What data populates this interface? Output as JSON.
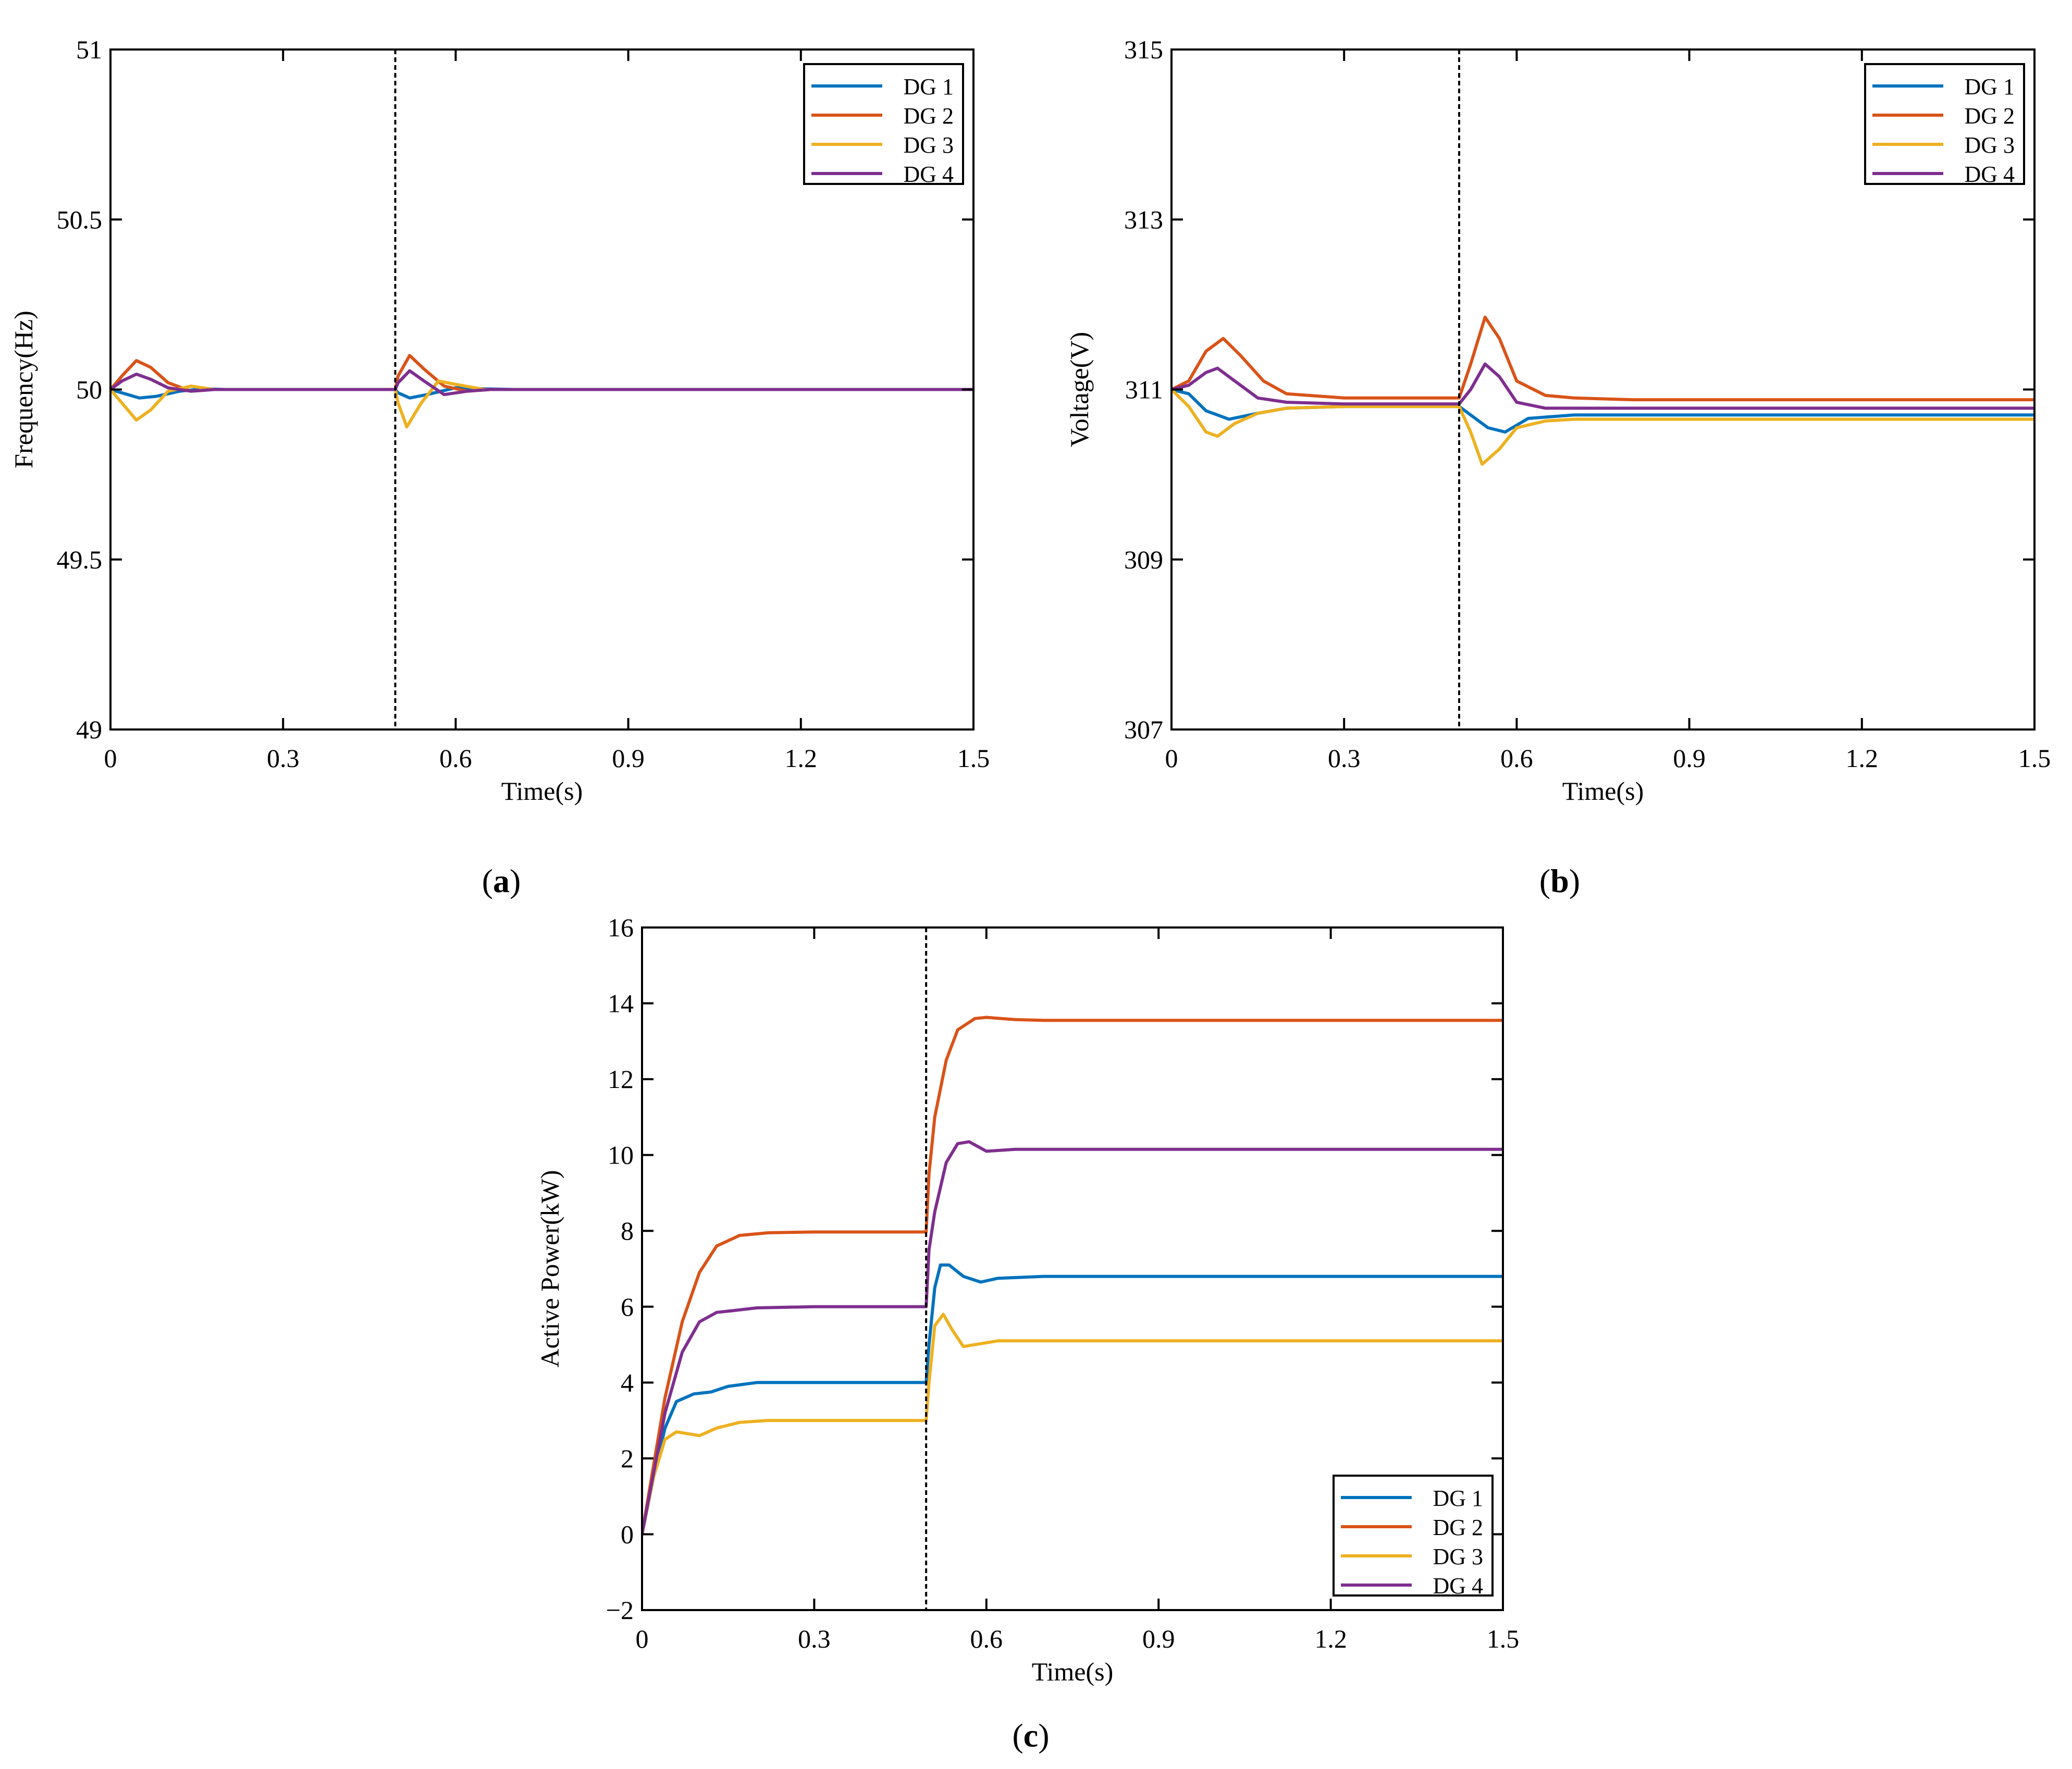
{
  "figure_labels": {
    "a": "a",
    "b": "b",
    "c": "c",
    "open": "(",
    "close": ")"
  },
  "colors": {
    "DG 1": "#0072BD",
    "DG 2": "#D95319",
    "DG 3": "#EDB120",
    "DG 4": "#7E2F8E",
    "axis": "#000000",
    "event_line": "#000000"
  },
  "chart_data": [
    {
      "id": "a",
      "type": "line",
      "title": "",
      "xlabel": "Time(s)",
      "ylabel": "Frequency(Hz)",
      "xlim": [
        0,
        1.5
      ],
      "ylim": [
        49,
        51
      ],
      "xticks": [
        0,
        0.3,
        0.6,
        0.9,
        1.2,
        1.5
      ],
      "xtick_labels": [
        "0",
        "0.3",
        "0.6",
        "0.9",
        "1.2",
        "1.5"
      ],
      "yticks": [
        49,
        49.5,
        50,
        50.5,
        51
      ],
      "ytick_labels": [
        "49",
        "49.5",
        "50",
        "50.5",
        "51"
      ],
      "event_line_x": 0.495,
      "legend_position": "top-right",
      "legend": [
        "DG 1",
        "DG 2",
        "DG 3",
        "DG 4"
      ],
      "series": [
        {
          "name": "DG 1",
          "x": [
            0,
            0.02,
            0.05,
            0.08,
            0.12,
            0.16,
            0.2,
            0.495,
            0.5,
            0.52,
            0.55,
            0.6,
            0.65,
            0.7,
            1.5
          ],
          "y": [
            50,
            49.99,
            49.975,
            49.98,
            49.995,
            50.002,
            50,
            50,
            49.99,
            49.975,
            49.985,
            50.005,
            50.002,
            50,
            50
          ]
        },
        {
          "name": "DG 2",
          "x": [
            0,
            0.02,
            0.045,
            0.07,
            0.1,
            0.14,
            0.18,
            0.2,
            0.495,
            0.5,
            0.52,
            0.545,
            0.58,
            0.62,
            0.66,
            0.7,
            1.5
          ],
          "y": [
            50,
            50.04,
            50.085,
            50.065,
            50.02,
            49.995,
            50,
            50,
            50,
            50.04,
            50.1,
            50.06,
            50.01,
            49.995,
            50,
            50,
            50
          ]
        },
        {
          "name": "DG 3",
          "x": [
            0,
            0.02,
            0.045,
            0.07,
            0.1,
            0.14,
            0.18,
            0.2,
            0.495,
            0.5,
            0.515,
            0.54,
            0.57,
            0.6,
            0.65,
            0.7,
            1.5
          ],
          "y": [
            50,
            49.96,
            49.91,
            49.94,
            49.995,
            50.01,
            50,
            50,
            50,
            49.96,
            49.89,
            49.96,
            50.025,
            50.015,
            50,
            50,
            50
          ]
        },
        {
          "name": "DG 4",
          "x": [
            0,
            0.02,
            0.045,
            0.07,
            0.1,
            0.14,
            0.18,
            0.2,
            0.495,
            0.5,
            0.52,
            0.545,
            0.58,
            0.62,
            0.66,
            0.7,
            1.5
          ],
          "y": [
            50,
            50.025,
            50.045,
            50.03,
            50.005,
            49.995,
            50,
            50,
            50,
            50.02,
            50.055,
            50.025,
            49.985,
            49.995,
            50,
            50,
            50
          ]
        }
      ]
    },
    {
      "id": "b",
      "type": "line",
      "title": "",
      "xlabel": "Time(s)",
      "ylabel": "Voltage(V)",
      "xlim": [
        0,
        1.5
      ],
      "ylim": [
        307,
        315
      ],
      "xticks": [
        0,
        0.3,
        0.6,
        0.9,
        1.2,
        1.5
      ],
      "xtick_labels": [
        "0",
        "0.3",
        "0.6",
        "0.9",
        "1.2",
        "1.5"
      ],
      "yticks": [
        307,
        309,
        311,
        313,
        315
      ],
      "ytick_labels": [
        "307",
        "309",
        "311",
        "313",
        "315"
      ],
      "event_line_x": 0.5,
      "legend_position": "top-right",
      "legend": [
        "DG 1",
        "DG 2",
        "DG 3",
        "DG 4"
      ],
      "series": [
        {
          "name": "DG 1",
          "x": [
            0,
            0.03,
            0.06,
            0.1,
            0.15,
            0.2,
            0.3,
            0.5,
            0.52,
            0.55,
            0.58,
            0.62,
            0.7,
            0.8,
            1.5
          ],
          "y": [
            311,
            310.95,
            310.75,
            310.65,
            310.72,
            310.78,
            310.8,
            310.8,
            310.7,
            310.55,
            310.5,
            310.66,
            310.7,
            310.7,
            310.7
          ]
        },
        {
          "name": "DG 2",
          "x": [
            0,
            0.03,
            0.06,
            0.09,
            0.12,
            0.16,
            0.2,
            0.3,
            0.5,
            0.52,
            0.545,
            0.57,
            0.6,
            0.65,
            0.7,
            0.8,
            1.5
          ],
          "y": [
            311,
            311.1,
            311.45,
            311.6,
            311.4,
            311.1,
            310.95,
            310.9,
            310.9,
            311.3,
            311.85,
            311.6,
            311.1,
            310.93,
            310.9,
            310.88,
            310.88
          ]
        },
        {
          "name": "DG 3",
          "x": [
            0,
            0.03,
            0.06,
            0.08,
            0.11,
            0.15,
            0.2,
            0.3,
            0.5,
            0.52,
            0.54,
            0.57,
            0.6,
            0.65,
            0.7,
            0.8,
            1.5
          ],
          "y": [
            311,
            310.8,
            310.5,
            310.45,
            310.6,
            310.72,
            310.78,
            310.8,
            310.8,
            310.5,
            310.12,
            310.3,
            310.55,
            310.63,
            310.65,
            310.65,
            310.65
          ]
        },
        {
          "name": "DG 4",
          "x": [
            0,
            0.03,
            0.06,
            0.08,
            0.11,
            0.15,
            0.2,
            0.3,
            0.5,
            0.52,
            0.545,
            0.57,
            0.6,
            0.65,
            0.7,
            0.8,
            1.5
          ],
          "y": [
            311,
            311.05,
            311.2,
            311.25,
            311.1,
            310.9,
            310.85,
            310.83,
            310.83,
            311,
            311.3,
            311.15,
            310.85,
            310.78,
            310.78,
            310.78,
            310.78
          ]
        }
      ]
    },
    {
      "id": "c",
      "type": "line",
      "title": "",
      "xlabel": "Time(s)",
      "ylabel": "Active Power(kW)",
      "xlim": [
        0,
        1.5
      ],
      "ylim": [
        -2,
        16
      ],
      "xticks": [
        0,
        0.3,
        0.6,
        0.9,
        1.2,
        1.5
      ],
      "xtick_labels": [
        "0",
        "0.3",
        "0.6",
        "0.9",
        "1.2",
        "1.5"
      ],
      "yticks": [
        -2,
        0,
        2,
        4,
        6,
        8,
        10,
        12,
        14,
        16
      ],
      "ytick_labels": [
        "−2",
        "0",
        "2",
        "4",
        "6",
        "8",
        "10",
        "12",
        "14",
        "16"
      ],
      "event_line_x": 0.495,
      "legend_position": "bottom-right",
      "legend": [
        "DG 1",
        "DG 2",
        "DG 3",
        "DG 4"
      ],
      "series": [
        {
          "name": "DG 1",
          "x": [
            0,
            0.02,
            0.04,
            0.06,
            0.09,
            0.12,
            0.15,
            0.2,
            0.3,
            0.495,
            0.5,
            0.51,
            0.52,
            0.535,
            0.56,
            0.59,
            0.62,
            0.7,
            1.5
          ],
          "y": [
            0,
            1.5,
            2.8,
            3.5,
            3.7,
            3.75,
            3.9,
            4.0,
            4.0,
            4.0,
            5.0,
            6.5,
            7.1,
            7.1,
            6.8,
            6.65,
            6.75,
            6.8,
            6.8
          ]
        },
        {
          "name": "DG 2",
          "x": [
            0,
            0.02,
            0.04,
            0.07,
            0.1,
            0.13,
            0.17,
            0.22,
            0.3,
            0.495,
            0.5,
            0.51,
            0.53,
            0.55,
            0.58,
            0.6,
            0.65,
            0.7,
            1.5
          ],
          "y": [
            0,
            1.8,
            3.6,
            5.6,
            6.9,
            7.6,
            7.88,
            7.95,
            7.97,
            7.97,
            9.5,
            11.0,
            12.5,
            13.3,
            13.6,
            13.63,
            13.57,
            13.55,
            13.55
          ]
        },
        {
          "name": "DG 3",
          "x": [
            0,
            0.02,
            0.04,
            0.06,
            0.08,
            0.1,
            0.13,
            0.17,
            0.22,
            0.3,
            0.495,
            0.5,
            0.51,
            0.525,
            0.54,
            0.56,
            0.58,
            0.62,
            0.7,
            1.5
          ],
          "y": [
            0,
            1.5,
            2.5,
            2.7,
            2.65,
            2.6,
            2.8,
            2.95,
            3.0,
            3.0,
            3.0,
            4.0,
            5.5,
            5.8,
            5.4,
            4.95,
            5.0,
            5.1,
            5.1,
            5.1
          ]
        },
        {
          "name": "DG 4",
          "x": [
            0,
            0.02,
            0.04,
            0.07,
            0.1,
            0.13,
            0.16,
            0.2,
            0.3,
            0.495,
            0.5,
            0.51,
            0.53,
            0.55,
            0.57,
            0.6,
            0.65,
            0.7,
            1.5
          ],
          "y": [
            0,
            1.6,
            3.2,
            4.8,
            5.6,
            5.85,
            5.9,
            5.97,
            6.0,
            6.0,
            7.5,
            8.5,
            9.8,
            10.3,
            10.35,
            10.1,
            10.15,
            10.15,
            10.15
          ]
        }
      ]
    }
  ]
}
